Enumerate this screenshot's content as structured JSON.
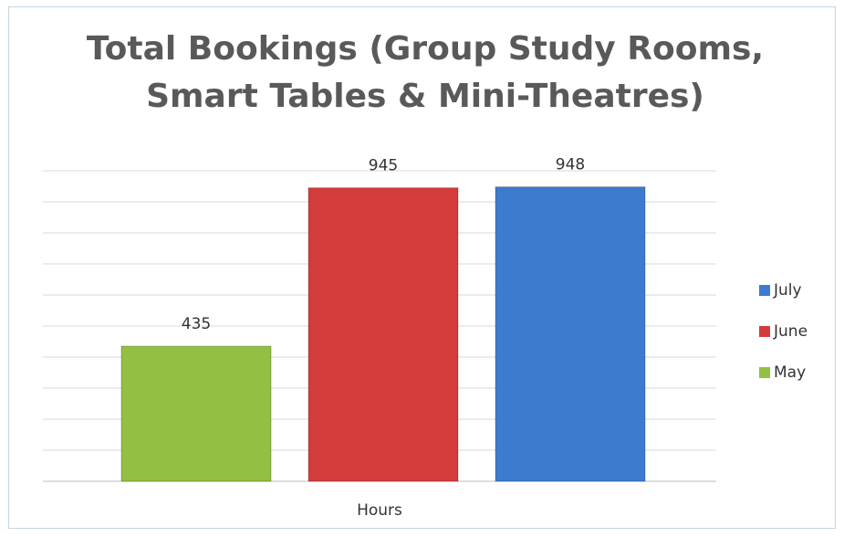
{
  "chart_data": {
    "type": "bar",
    "title": "Total Bookings (Group Study Rooms, Smart Tables & Mini-Theatres)",
    "categories": [
      "Hours"
    ],
    "series": [
      {
        "name": "May",
        "color": "#92c042",
        "values": [
          435
        ]
      },
      {
        "name": "June",
        "color": "#d43c3c",
        "values": [
          945
        ]
      },
      {
        "name": "July",
        "color": "#3d7bcf",
        "values": [
          948
        ]
      }
    ],
    "ylim": [
      0,
      1000
    ],
    "yticks": [
      0,
      100,
      200,
      300,
      400,
      500,
      600,
      700,
      800,
      900,
      1000
    ],
    "grid": true,
    "legend": "right"
  }
}
